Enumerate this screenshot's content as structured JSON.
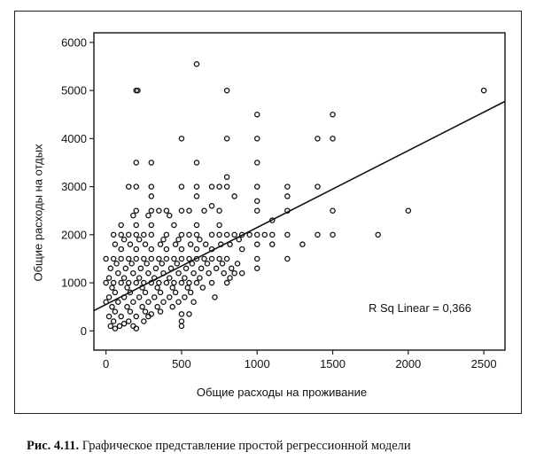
{
  "chart_data": {
    "type": "scatter",
    "title": "",
    "xlabel": "Общие расходы на проживание",
    "ylabel": "Общие расходы на отдых",
    "xlim": [
      -80,
      2640
    ],
    "ylim": [
      -400,
      6200
    ],
    "x_ticks": [
      0,
      500,
      1000,
      1500,
      2000,
      2500
    ],
    "y_ticks": [
      0,
      1000,
      2000,
      3000,
      4000,
      5000,
      6000
    ],
    "x_tick_labels": [
      "0",
      "500",
      "1000",
      "1500",
      "2000",
      "2500"
    ],
    "y_tick_labels": [
      "0",
      "1000",
      "2000",
      "3000",
      "4000",
      "5000",
      "6000"
    ],
    "grid": false,
    "fit_line": {
      "intercept": 550,
      "slope": 1.6,
      "x_from": -80,
      "x_to": 2640
    },
    "annotation": "R Sq Linear = 0,366",
    "points": [
      [
        600,
        5550
      ],
      [
        200,
        5000
      ],
      [
        210,
        5000
      ],
      [
        800,
        5000
      ],
      [
        2500,
        5000
      ],
      [
        1000,
        4500
      ],
      [
        1500,
        4500
      ],
      [
        500,
        4000
      ],
      [
        800,
        4000
      ],
      [
        1000,
        4000
      ],
      [
        1400,
        4000
      ],
      [
        1500,
        4000
      ],
      [
        200,
        3500
      ],
      [
        300,
        3500
      ],
      [
        600,
        3500
      ],
      [
        1000,
        3500
      ],
      [
        800,
        3200
      ],
      [
        150,
        3000
      ],
      [
        200,
        3000
      ],
      [
        300,
        3000
      ],
      [
        500,
        3000
      ],
      [
        600,
        3000
      ],
      [
        700,
        3000
      ],
      [
        750,
        3000
      ],
      [
        800,
        3000
      ],
      [
        1000,
        3000
      ],
      [
        1200,
        3000
      ],
      [
        1400,
        3000
      ],
      [
        300,
        2800
      ],
      [
        600,
        2800
      ],
      [
        850,
        2800
      ],
      [
        1200,
        2800
      ],
      [
        1000,
        2700
      ],
      [
        700,
        2600
      ],
      [
        200,
        2500
      ],
      [
        300,
        2500
      ],
      [
        350,
        2500
      ],
      [
        400,
        2500
      ],
      [
        500,
        2500
      ],
      [
        550,
        2500
      ],
      [
        650,
        2500
      ],
      [
        750,
        2500
      ],
      [
        1000,
        2500
      ],
      [
        1200,
        2500
      ],
      [
        1500,
        2500
      ],
      [
        2000,
        2500
      ],
      [
        180,
        2400
      ],
      [
        280,
        2400
      ],
      [
        420,
        2400
      ],
      [
        1100,
        2300
      ],
      [
        100,
        2200
      ],
      [
        200,
        2200
      ],
      [
        300,
        2200
      ],
      [
        450,
        2200
      ],
      [
        600,
        2200
      ],
      [
        750,
        2200
      ],
      [
        50,
        2000
      ],
      [
        100,
        2000
      ],
      [
        150,
        2000
      ],
      [
        200,
        2000
      ],
      [
        250,
        2000
      ],
      [
        300,
        2000
      ],
      [
        400,
        2000
      ],
      [
        500,
        2000
      ],
      [
        550,
        2000
      ],
      [
        600,
        2000
      ],
      [
        700,
        2000
      ],
      [
        750,
        2000
      ],
      [
        800,
        2000
      ],
      [
        850,
        2000
      ],
      [
        900,
        2000
      ],
      [
        950,
        2000
      ],
      [
        1000,
        2000
      ],
      [
        1050,
        2000
      ],
      [
        1100,
        2000
      ],
      [
        1200,
        2000
      ],
      [
        1400,
        2000
      ],
      [
        1500,
        2000
      ],
      [
        1800,
        2000
      ],
      [
        120,
        1900
      ],
      [
        220,
        1900
      ],
      [
        380,
        1900
      ],
      [
        480,
        1900
      ],
      [
        620,
        1900
      ],
      [
        880,
        1900
      ],
      [
        60,
        1800
      ],
      [
        160,
        1800
      ],
      [
        260,
        1800
      ],
      [
        360,
        1800
      ],
      [
        460,
        1800
      ],
      [
        560,
        1800
      ],
      [
        660,
        1800
      ],
      [
        760,
        1800
      ],
      [
        820,
        1800
      ],
      [
        1000,
        1800
      ],
      [
        1100,
        1800
      ],
      [
        1300,
        1800
      ],
      [
        100,
        1700
      ],
      [
        200,
        1700
      ],
      [
        300,
        1700
      ],
      [
        400,
        1700
      ],
      [
        500,
        1700
      ],
      [
        600,
        1700
      ],
      [
        700,
        1700
      ],
      [
        900,
        1700
      ],
      [
        0,
        1500
      ],
      [
        50,
        1500
      ],
      [
        100,
        1500
      ],
      [
        150,
        1500
      ],
      [
        200,
        1500
      ],
      [
        250,
        1500
      ],
      [
        300,
        1500
      ],
      [
        350,
        1500
      ],
      [
        400,
        1500
      ],
      [
        450,
        1500
      ],
      [
        500,
        1500
      ],
      [
        550,
        1500
      ],
      [
        600,
        1500
      ],
      [
        650,
        1500
      ],
      [
        700,
        1500
      ],
      [
        750,
        1500
      ],
      [
        800,
        1500
      ],
      [
        1000,
        1500
      ],
      [
        1200,
        1500
      ],
      [
        70,
        1400
      ],
      [
        170,
        1400
      ],
      [
        270,
        1400
      ],
      [
        370,
        1400
      ],
      [
        470,
        1400
      ],
      [
        570,
        1400
      ],
      [
        670,
        1400
      ],
      [
        770,
        1400
      ],
      [
        870,
        1400
      ],
      [
        30,
        1300
      ],
      [
        130,
        1300
      ],
      [
        230,
        1300
      ],
      [
        330,
        1300
      ],
      [
        430,
        1300
      ],
      [
        530,
        1300
      ],
      [
        630,
        1300
      ],
      [
        730,
        1300
      ],
      [
        830,
        1300
      ],
      [
        1000,
        1300
      ],
      [
        80,
        1200
      ],
      [
        180,
        1200
      ],
      [
        280,
        1200
      ],
      [
        380,
        1200
      ],
      [
        480,
        1200
      ],
      [
        580,
        1200
      ],
      [
        680,
        1200
      ],
      [
        780,
        1200
      ],
      [
        850,
        1200
      ],
      [
        900,
        1200
      ],
      [
        20,
        1100
      ],
      [
        120,
        1100
      ],
      [
        220,
        1100
      ],
      [
        320,
        1100
      ],
      [
        420,
        1100
      ],
      [
        520,
        1100
      ],
      [
        620,
        1100
      ],
      [
        820,
        1100
      ],
      [
        0,
        1000
      ],
      [
        50,
        1000
      ],
      [
        100,
        1000
      ],
      [
        150,
        1000
      ],
      [
        200,
        1000
      ],
      [
        250,
        1000
      ],
      [
        300,
        1000
      ],
      [
        350,
        1000
      ],
      [
        400,
        1000
      ],
      [
        450,
        1000
      ],
      [
        500,
        1000
      ],
      [
        550,
        1000
      ],
      [
        600,
        1000
      ],
      [
        700,
        1000
      ],
      [
        800,
        1000
      ],
      [
        40,
        900
      ],
      [
        140,
        900
      ],
      [
        240,
        900
      ],
      [
        340,
        900
      ],
      [
        440,
        900
      ],
      [
        540,
        900
      ],
      [
        640,
        900
      ],
      [
        60,
        800
      ],
      [
        160,
        800
      ],
      [
        260,
        800
      ],
      [
        360,
        800
      ],
      [
        460,
        800
      ],
      [
        560,
        800
      ],
      [
        20,
        700
      ],
      [
        120,
        700
      ],
      [
        220,
        700
      ],
      [
        320,
        700
      ],
      [
        420,
        700
      ],
      [
        520,
        700
      ],
      [
        720,
        700
      ],
      [
        0,
        600
      ],
      [
        80,
        600
      ],
      [
        180,
        600
      ],
      [
        280,
        600
      ],
      [
        380,
        600
      ],
      [
        480,
        600
      ],
      [
        580,
        600
      ],
      [
        40,
        500
      ],
      [
        140,
        500
      ],
      [
        240,
        500
      ],
      [
        340,
        500
      ],
      [
        440,
        500
      ],
      [
        60,
        400
      ],
      [
        160,
        400
      ],
      [
        260,
        400
      ],
      [
        360,
        400
      ],
      [
        500,
        350
      ],
      [
        300,
        350
      ],
      [
        550,
        350
      ],
      [
        20,
        300
      ],
      [
        100,
        300
      ],
      [
        200,
        300
      ],
      [
        280,
        300
      ],
      [
        50,
        200
      ],
      [
        150,
        200
      ],
      [
        250,
        200
      ],
      [
        500,
        200
      ],
      [
        120,
        150
      ],
      [
        30,
        100
      ],
      [
        90,
        100
      ],
      [
        180,
        100
      ],
      [
        60,
        50
      ],
      [
        200,
        50
      ],
      [
        500,
        100
      ]
    ]
  },
  "caption": {
    "figure_number": "Рис. 4.11.",
    "text": "Графическое представление простой регрессионной модели"
  }
}
